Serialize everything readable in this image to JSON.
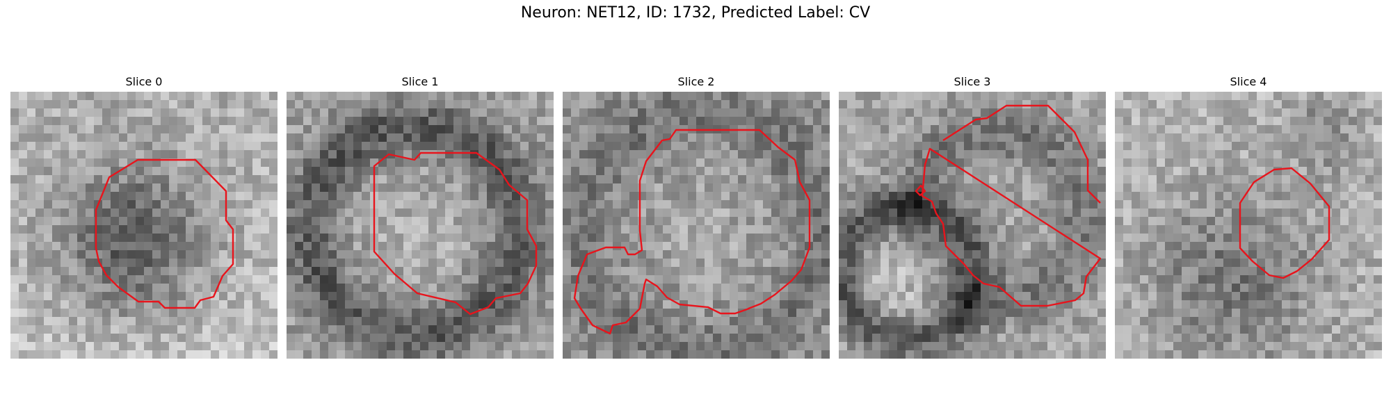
{
  "figure": {
    "title": "Neuron: NET12, ID: 1732, Predicted Label: CV"
  },
  "panels": [
    {
      "title": "Slice 0"
    },
    {
      "title": "Slice 1"
    },
    {
      "title": "Slice 2"
    },
    {
      "title": "Slice 3"
    },
    {
      "title": "Slice 4"
    }
  ],
  "colors": {
    "contour": "#e8141c",
    "background": "#ffffff"
  }
}
